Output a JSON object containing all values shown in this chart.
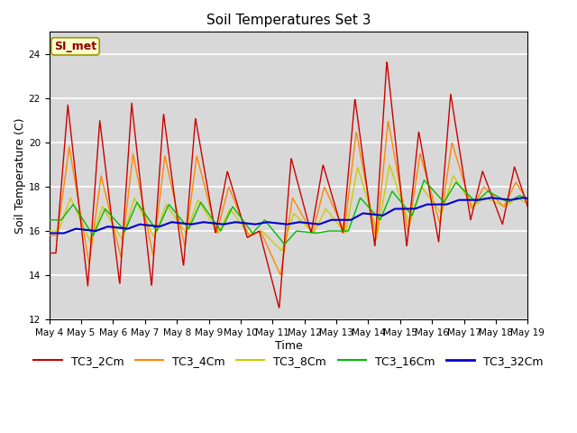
{
  "title": "Soil Temperatures Set 3",
  "xlabel": "Time",
  "ylabel": "Soil Temperature (C)",
  "ylim": [
    12,
    25
  ],
  "yticks": [
    12,
    14,
    16,
    18,
    20,
    22,
    24
  ],
  "plot_bg_color": "#d8d8d8",
  "fig_bg_color": "#ffffff",
  "annotation_text": "SI_met",
  "annotation_color": "#8b0000",
  "annotation_bg": "#ffffcc",
  "annotation_edge": "#999900",
  "series": {
    "TC3_2Cm": {
      "color": "#cc0000",
      "lw": 1.0
    },
    "TC3_4Cm": {
      "color": "#ff8800",
      "lw": 1.0
    },
    "TC3_8Cm": {
      "color": "#cccc00",
      "lw": 1.0
    },
    "TC3_16Cm": {
      "color": "#00bb00",
      "lw": 1.0
    },
    "TC3_32Cm": {
      "color": "#0000cc",
      "lw": 1.5
    }
  },
  "legend_fontsize": 9,
  "title_fontsize": 11,
  "tick_fontsize": 7.5,
  "n_days": 15,
  "start_day": 4
}
